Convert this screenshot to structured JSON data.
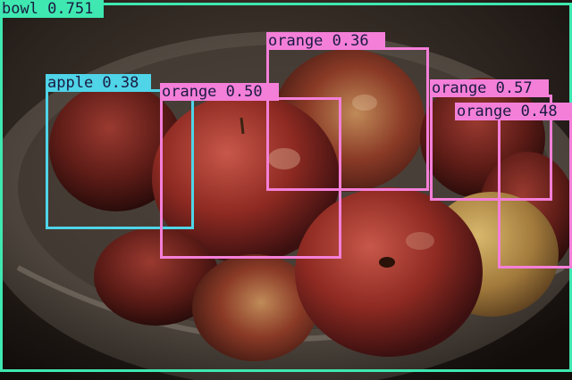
{
  "colors": {
    "bowl": "#3ee8b0",
    "apple": "#4fd4e8",
    "orange": "#f47fd9",
    "label_text": "#1a1a40"
  },
  "detections": [
    {
      "label": "bowl 0.751",
      "class": "bowl"
    },
    {
      "label": "apple 0.38",
      "class": "apple"
    },
    {
      "label": "orange 0.36",
      "class": "orange"
    },
    {
      "label": "orange 0.50",
      "class": "orange"
    },
    {
      "label": "orange 0.57",
      "class": "orange"
    },
    {
      "label": "orange 0.48",
      "class": "orange"
    }
  ]
}
